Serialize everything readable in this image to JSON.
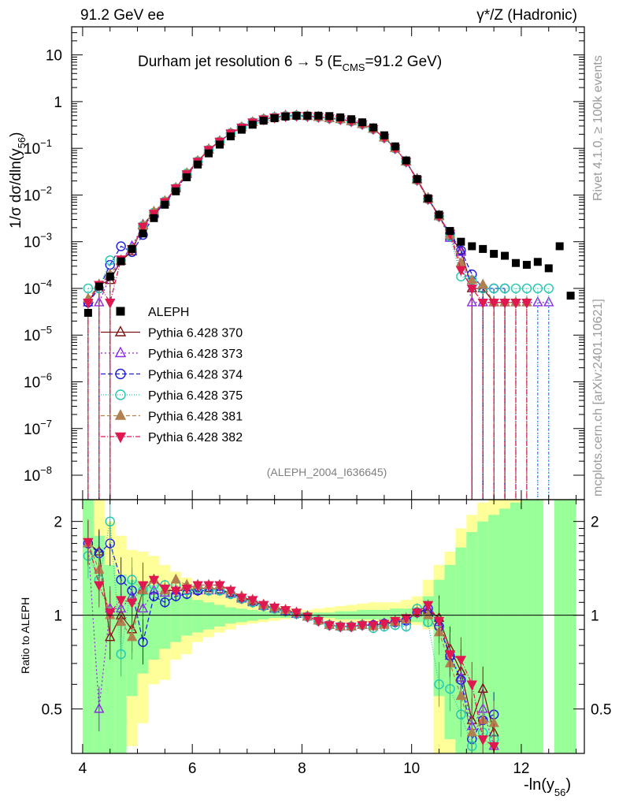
{
  "header": {
    "left": "91.2 GeV ee",
    "right": "γ*/Z (Hadronic)"
  },
  "side": {
    "rivet": "Rivet 4.1.0, ≥ 100k events",
    "mcplots": "mcplots.cern.ch [arXiv:2401.10621]"
  },
  "chart_data": {
    "type": "scatter",
    "title_parts": {
      "main": "Durham jet resolution 6",
      "arrow": "→",
      "tail": " 5 (E",
      "sub": "CMS",
      "end": "=91.2 GeV)"
    },
    "tag": "(ALEPH_2004_I636645)",
    "ylabel_parts": {
      "pre": "1/σ  dσ/dln(y",
      "sub": "56",
      "post": ")"
    },
    "xlabel_parts": {
      "pre": "-ln(y",
      "sub": "56",
      "post": ")"
    },
    "ratio_ylabel": "Ratio to ALEPH",
    "xlim": [
      3.8,
      13.15
    ],
    "ylim_log": [
      3e-09,
      40
    ],
    "ratio_ylim": [
      0.36,
      2.35
    ],
    "x_ticks": [
      "4",
      "6",
      "8",
      "10",
      "12"
    ],
    "y_ticks": [
      {
        "m": "10",
        "e": "",
        "v": 10
      },
      {
        "m": "1",
        "e": "",
        "v": 1
      },
      {
        "m": "10",
        "e": "−1",
        "v": 0.1
      },
      {
        "m": "10",
        "e": "−2",
        "v": 0.01
      },
      {
        "m": "10",
        "e": "−3",
        "v": 0.001
      },
      {
        "m": "10",
        "e": "−4",
        "v": 0.0001
      },
      {
        "m": "10",
        "e": "−5",
        "v": 1e-05
      },
      {
        "m": "10",
        "e": "−6",
        "v": 1e-06
      },
      {
        "m": "10",
        "e": "−7",
        "v": 1e-07
      },
      {
        "m": "10",
        "e": "−8",
        "v": 1e-08
      }
    ],
    "ratio_ticks": [
      "2",
      "1",
      "0.5"
    ],
    "x_centers": [
      4.1,
      4.3,
      4.5,
      4.7,
      4.9,
      5.1,
      5.3,
      5.5,
      5.7,
      5.9,
      6.1,
      6.3,
      6.5,
      6.7,
      6.9,
      7.1,
      7.3,
      7.5,
      7.7,
      7.9,
      8.1,
      8.3,
      8.5,
      8.7,
      8.9,
      9.1,
      9.3,
      9.5,
      9.7,
      9.9,
      10.1,
      10.3,
      10.5,
      10.7,
      10.9,
      11.1,
      11.3,
      11.5,
      11.7,
      11.9,
      12.1,
      12.3,
      12.5,
      12.7,
      12.9
    ],
    "data": {
      "name": "ALEPH",
      "values": [
        3e-05,
        0.00011,
        0.00018,
        0.00038,
        0.0007,
        0.0015,
        0.0032,
        0.0062,
        0.012,
        0.024,
        0.045,
        0.078,
        0.12,
        0.18,
        0.25,
        0.32,
        0.39,
        0.44,
        0.48,
        0.5,
        0.5,
        0.5,
        0.49,
        0.46,
        0.42,
        0.36,
        0.28,
        0.19,
        0.11,
        0.055,
        0.022,
        0.0085,
        0.0038,
        0.0017,
        0.001,
        0.0008,
        0.0007,
        0.00055,
        0.0005,
        0.00035,
        0.00032,
        0.00037,
        0.00027,
        0.0008,
        7e-05
      ]
    },
    "legend": [
      {
        "label": "ALEPH"
      },
      {
        "label": "Pythia 6.428 370"
      },
      {
        "label": "Pythia 6.428 373"
      },
      {
        "label": "Pythia 6.428 374"
      },
      {
        "label": "Pythia 6.428 375"
      },
      {
        "label": "Pythia 6.428 381"
      },
      {
        "label": "Pythia 6.428 382"
      }
    ],
    "series": [
      {
        "name": "Pythia 6.428 370",
        "color": "#7b1111",
        "marker": "tri-up-open",
        "dash": "",
        "values": [
          5e-05,
          0.00012,
          0.00015,
          0.00039,
          0.00062,
          0.0023,
          0.0042,
          0.0072,
          0.014,
          0.029,
          0.053,
          0.095,
          0.142,
          0.21,
          0.28,
          0.36,
          0.42,
          0.46,
          0.5,
          0.5,
          0.49,
          0.47,
          0.44,
          0.42,
          0.38,
          0.33,
          0.26,
          0.17,
          0.1,
          0.052,
          0.022,
          0.0085,
          0.0036,
          0.0013,
          0.00065,
          0.0001,
          0.0001,
          5e-05,
          5e-05,
          0,
          0,
          0,
          0,
          0,
          0
        ],
        "ratio": [
          1.7,
          1.6,
          0.85,
          1.0,
          0.9,
          1.2,
          1.3,
          1.2,
          1.2,
          1.2,
          1.22,
          1.22,
          1.21,
          1.18,
          1.14,
          1.11,
          1.08,
          1.05,
          1.03,
          1.01,
          0.99,
          0.96,
          0.93,
          0.92,
          0.92,
          0.93,
          0.93,
          0.94,
          0.95,
          0.96,
          1.02,
          1.04,
          0.98,
          0.78,
          0.66,
          0.46,
          0.58,
          0.42,
          0,
          0,
          0,
          0,
          0,
          0,
          0
        ]
      },
      {
        "name": "Pythia 6.428 373",
        "color": "#8a2be2",
        "marker": "tri-up-open",
        "dash": "2,3",
        "values": [
          5e-05,
          5e-05,
          0.00018,
          0.0004,
          0.0008,
          0.0022,
          0.0039,
          0.0073,
          0.014,
          0.028,
          0.052,
          0.093,
          0.14,
          0.21,
          0.28,
          0.36,
          0.42,
          0.46,
          0.49,
          0.5,
          0.49,
          0.47,
          0.44,
          0.42,
          0.38,
          0.33,
          0.26,
          0.17,
          0.1,
          0.052,
          0.021,
          0.0082,
          0.0035,
          0.0012,
          0.0006,
          5e-05,
          5e-05,
          5e-05,
          5e-05,
          5e-05,
          5e-05,
          5e-05,
          5e-05,
          0,
          0
        ],
        "ratio": [
          1.7,
          0.5,
          1.05,
          1.05,
          1.15,
          1.05,
          1.2,
          1.18,
          1.2,
          1.2,
          1.2,
          1.2,
          1.2,
          1.17,
          1.13,
          1.1,
          1.07,
          1.05,
          1.03,
          1.01,
          0.99,
          0.96,
          0.93,
          0.92,
          0.92,
          0.93,
          0.93,
          0.94,
          0.95,
          0.96,
          1.02,
          1.05,
          0.95,
          0.74,
          0.63,
          0.44,
          0.5,
          0.38,
          0,
          0,
          0,
          0,
          0,
          0,
          0
        ]
      },
      {
        "name": "Pythia 6.428 374",
        "color": "#1c1cd6",
        "marker": "circle-open",
        "dash": "6,3",
        "values": [
          5e-05,
          0.0001,
          0.00032,
          0.0008,
          0.0006,
          0.0014,
          0.0037,
          0.0068,
          0.013,
          0.027,
          0.051,
          0.092,
          0.14,
          0.21,
          0.28,
          0.36,
          0.42,
          0.46,
          0.49,
          0.5,
          0.49,
          0.47,
          0.44,
          0.42,
          0.38,
          0.33,
          0.26,
          0.17,
          0.1,
          0.052,
          0.021,
          0.0082,
          0.0035,
          0.0015,
          0.00065,
          0.0002,
          0.0001,
          0.0001,
          0.0001,
          0,
          0,
          0,
          0,
          0,
          0
        ],
        "ratio": [
          1.7,
          1.58,
          1.7,
          1.3,
          1.2,
          0.82,
          1.15,
          1.1,
          1.15,
          1.17,
          1.2,
          1.2,
          1.2,
          1.17,
          1.13,
          1.1,
          1.07,
          1.05,
          1.03,
          1.01,
          0.99,
          0.96,
          0.93,
          0.92,
          0.92,
          0.93,
          0.93,
          0.94,
          0.95,
          0.96,
          1.02,
          1.05,
          0.92,
          0.74,
          0.62,
          0.4,
          0.46,
          0.48,
          0,
          0,
          0,
          0,
          0,
          0,
          0
        ]
      },
      {
        "name": "Pythia 6.428 375",
        "color": "#20c8b0",
        "marker": "circle-open",
        "dash": "1,2",
        "values": [
          0.0001,
          0.0001,
          0.0004,
          0.0004,
          0.0007,
          0.0022,
          0.0042,
          0.0073,
          0.014,
          0.029,
          0.053,
          0.093,
          0.14,
          0.21,
          0.28,
          0.36,
          0.42,
          0.46,
          0.49,
          0.5,
          0.49,
          0.47,
          0.44,
          0.42,
          0.38,
          0.33,
          0.26,
          0.17,
          0.1,
          0.052,
          0.021,
          0.0082,
          0.0035,
          0.0013,
          0.00018,
          0.00015,
          0.0001,
          0.0001,
          0.0001,
          0.0001,
          0.0001,
          0.0001,
          0.0001,
          0,
          0
        ],
        "ratio": [
          1.55,
          1.3,
          2.0,
          0.75,
          1.3,
          1.2,
          1.25,
          1.25,
          1.25,
          1.2,
          1.22,
          1.2,
          1.2,
          1.17,
          1.13,
          1.1,
          1.07,
          1.05,
          1.03,
          1.01,
          0.99,
          0.96,
          0.93,
          0.92,
          0.92,
          0.93,
          0.91,
          0.92,
          0.93,
          0.92,
          1.05,
          0.95,
          0.6,
          0.58,
          0.48,
          0.38,
          0.42,
          0.4,
          0,
          0,
          0,
          0,
          0,
          0,
          0
        ]
      },
      {
        "name": "Pythia 6.428 381",
        "color": "#b08050",
        "marker": "tri-up-filled",
        "dash": "5,3",
        "values": [
          6e-05,
          0.00012,
          0.0002,
          0.0004,
          0.0007,
          0.0022,
          0.0044,
          0.0074,
          0.014,
          0.029,
          0.053,
          0.094,
          0.14,
          0.21,
          0.28,
          0.36,
          0.42,
          0.46,
          0.49,
          0.5,
          0.49,
          0.47,
          0.44,
          0.42,
          0.38,
          0.33,
          0.26,
          0.17,
          0.1,
          0.052,
          0.021,
          0.0082,
          0.0035,
          0.0014,
          0.00035,
          0.00015,
          0.00012,
          5e-05,
          5e-05,
          5e-05,
          5e-05,
          0,
          0,
          0,
          0
        ],
        "ratio": [
          1.7,
          1.4,
          1.0,
          0.95,
          0.85,
          1.2,
          1.3,
          1.2,
          1.3,
          1.25,
          1.25,
          1.25,
          1.25,
          1.2,
          1.15,
          1.12,
          1.08,
          1.06,
          1.04,
          1.02,
          0.99,
          0.96,
          0.93,
          0.92,
          0.92,
          0.93,
          0.92,
          0.93,
          0.95,
          0.97,
          1.02,
          1.0,
          0.88,
          0.7,
          0.55,
          0.42,
          0.46,
          0.45,
          0,
          0,
          0,
          0,
          0,
          0,
          0
        ]
      },
      {
        "name": "Pythia 6.428 382",
        "color": "#e01850",
        "marker": "tri-down-filled",
        "dash": "6,2,1,2",
        "values": [
          5e-05,
          0.00012,
          5e-05,
          0.00042,
          0.0007,
          0.0021,
          0.004,
          0.0071,
          0.014,
          0.028,
          0.052,
          0.093,
          0.14,
          0.21,
          0.28,
          0.36,
          0.42,
          0.46,
          0.49,
          0.5,
          0.49,
          0.47,
          0.44,
          0.42,
          0.38,
          0.33,
          0.26,
          0.17,
          0.1,
          0.052,
          0.021,
          0.0082,
          0.0035,
          0.0015,
          0.00025,
          0.0001,
          5e-05,
          5e-05,
          5e-05,
          5e-05,
          5e-05,
          0,
          0,
          0,
          0
        ],
        "ratio": [
          1.72,
          1.25,
          1.02,
          1.12,
          1.1,
          1.25,
          1.3,
          1.22,
          1.2,
          1.22,
          1.25,
          1.25,
          1.25,
          1.2,
          1.14,
          1.12,
          1.08,
          1.06,
          1.04,
          1.02,
          0.99,
          0.96,
          0.93,
          0.92,
          0.92,
          0.93,
          0.93,
          0.94,
          0.96,
          0.98,
          1.02,
          1.08,
          0.96,
          0.75,
          0.72,
          0.6,
          0.4,
          0.38,
          0,
          0,
          0,
          0,
          0,
          0,
          0
        ]
      }
    ],
    "bands": {
      "x_edges": [
        4.0,
        4.2,
        4.4,
        4.6,
        4.8,
        5.0,
        5.2,
        5.4,
        5.6,
        5.8,
        6.0,
        6.2,
        6.4,
        6.6,
        6.8,
        7.0,
        7.2,
        7.4,
        7.6,
        7.8,
        8.0,
        8.2,
        8.4,
        8.6,
        8.8,
        9.0,
        9.2,
        9.4,
        9.6,
        9.8,
        10.0,
        10.2,
        10.4,
        10.6,
        10.8,
        11.0,
        11.2,
        11.4,
        11.6,
        11.8,
        12.0,
        12.2,
        12.4,
        12.6,
        12.8,
        13.0
      ],
      "yellow_lo": [
        0.3,
        0.3,
        0.3,
        0.3,
        0.38,
        0.45,
        0.6,
        0.62,
        0.72,
        0.75,
        0.82,
        0.85,
        0.88,
        0.9,
        0.93,
        0.94,
        0.95,
        0.96,
        0.97,
        0.98,
        0.98,
        0.97,
        0.96,
        0.95,
        0.95,
        0.95,
        0.95,
        0.95,
        0.95,
        0.94,
        0.93,
        0.9,
        0.3,
        0.3,
        0.3,
        0.3,
        0.3,
        0.3,
        0.3,
        0.3,
        0.3,
        0.3,
        0.0,
        0.3,
        0.3
      ],
      "yellow_hi": [
        2.6,
        2.6,
        2.0,
        1.8,
        1.62,
        1.6,
        1.55,
        1.45,
        1.38,
        1.32,
        1.25,
        1.2,
        1.17,
        1.14,
        1.12,
        1.1,
        1.08,
        1.07,
        1.06,
        1.05,
        1.04,
        1.05,
        1.06,
        1.07,
        1.08,
        1.09,
        1.1,
        1.1,
        1.1,
        1.12,
        1.15,
        1.3,
        1.45,
        1.6,
        1.9,
        2.1,
        2.3,
        2.4,
        2.5,
        2.5,
        2.5,
        2.5,
        0.0,
        2.5,
        2.5
      ],
      "green_lo": [
        0.3,
        0.3,
        0.3,
        0.3,
        0.55,
        0.65,
        0.72,
        0.78,
        0.82,
        0.86,
        0.88,
        0.9,
        0.92,
        0.94,
        0.95,
        0.96,
        0.97,
        0.98,
        0.98,
        0.99,
        0.99,
        0.98,
        0.98,
        0.97,
        0.97,
        0.97,
        0.97,
        0.97,
        0.96,
        0.96,
        0.95,
        0.92,
        0.55,
        0.4,
        0.3,
        0.3,
        0.3,
        0.3,
        0.3,
        0.3,
        0.3,
        0.3,
        0.0,
        0.3,
        0.3
      ],
      "green_hi": [
        2.6,
        1.8,
        1.45,
        1.35,
        1.3,
        1.28,
        1.25,
        1.22,
        1.18,
        1.15,
        1.12,
        1.1,
        1.08,
        1.06,
        1.05,
        1.04,
        1.03,
        1.03,
        1.02,
        1.02,
        1.02,
        1.02,
        1.02,
        1.03,
        1.03,
        1.04,
        1.04,
        1.04,
        1.05,
        1.05,
        1.06,
        1.15,
        1.3,
        1.45,
        1.65,
        1.85,
        2.0,
        2.1,
        2.2,
        2.3,
        2.5,
        2.5,
        0.0,
        2.5,
        2.5
      ]
    }
  }
}
